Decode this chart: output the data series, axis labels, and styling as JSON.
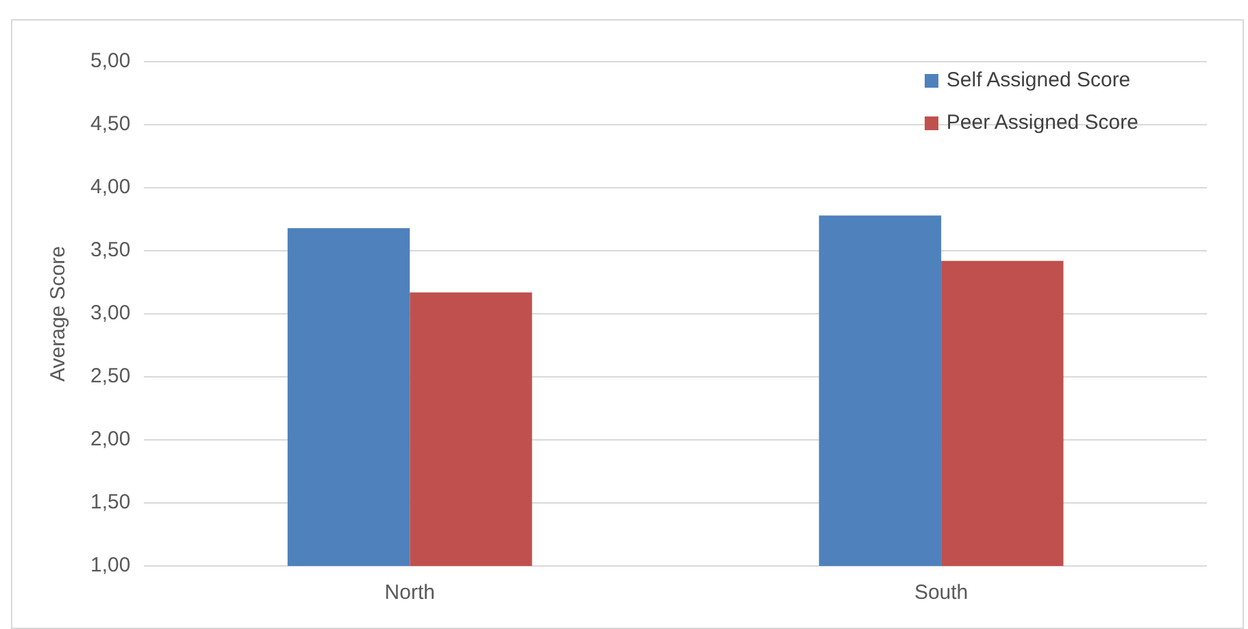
{
  "chart_data": {
    "type": "bar",
    "ylabel": "Average Score",
    "categories": [
      "North",
      "South"
    ],
    "series": [
      {
        "name": "Self Assigned Score",
        "color": "#4f81bd",
        "values": [
          3.68,
          3.78
        ]
      },
      {
        "name": "Peer Assigned Score",
        "color": "#c0504d",
        "values": [
          3.17,
          3.42
        ]
      }
    ],
    "ylim": [
      1,
      5
    ],
    "yticks": [
      {
        "value": 1,
        "label": "1,00"
      },
      {
        "value": 1.5,
        "label": "1,50"
      },
      {
        "value": 2,
        "label": "2,00"
      },
      {
        "value": 2.5,
        "label": "2,50"
      },
      {
        "value": 3,
        "label": "3,00"
      },
      {
        "value": 3.5,
        "label": "3,50"
      },
      {
        "value": 4,
        "label": "4,00"
      },
      {
        "value": 4.5,
        "label": "4,50"
      },
      {
        "value": 5,
        "label": "5,00"
      }
    ],
    "grid": "y",
    "legend": "top right"
  }
}
